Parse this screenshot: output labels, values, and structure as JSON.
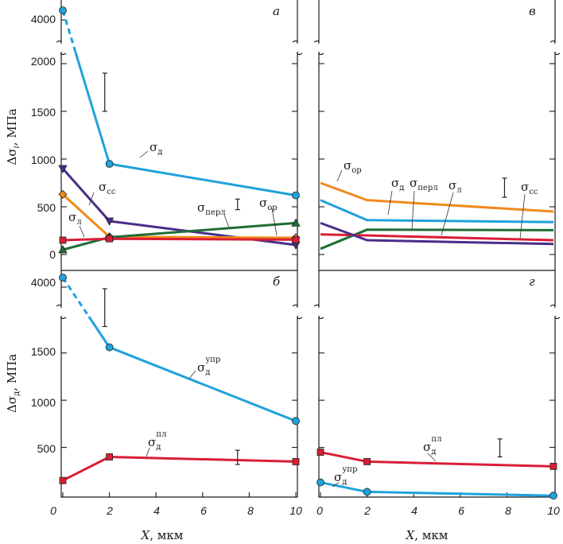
{
  "chart_data": [
    {
      "panel": "а",
      "type": "line",
      "ylabel": "Δσ_i, МПа",
      "y_break": true,
      "ylim": [
        0,
        2000
      ],
      "y_break_value": 4000,
      "yticks": [
        "0",
        "500",
        "1000",
        "1500",
        "2000",
        "4000"
      ],
      "x": [
        0,
        2,
        10
      ],
      "series": [
        {
          "name": "σ_д",
          "color": "#1fa2dc",
          "marker": "circle",
          "values": [
            4080,
            950,
            620
          ],
          "dashed_first_segment": true
        },
        {
          "name": "σ_сс",
          "color": "#4a2d8a",
          "marker": "triangle-down",
          "values": [
            900,
            350,
            100
          ]
        },
        {
          "name": "σ_ор",
          "color": "#f08a1c",
          "marker": "diamond",
          "values": [
            630,
            185,
            175
          ]
        },
        {
          "name": "σ_перл",
          "color": "#1e6e36",
          "marker": "triangle-up",
          "values": [
            50,
            180,
            330
          ]
        },
        {
          "name": "σ_л",
          "color": "#d91e36",
          "marker": "square",
          "values": [
            150,
            165,
            155
          ]
        }
      ],
      "error_bars": [
        {
          "x": 1.8,
          "low": 1500,
          "high": 1900
        },
        {
          "x": 7.5,
          "low": 470,
          "high": 580
        }
      ]
    },
    {
      "panel": "в",
      "type": "line",
      "y_break": true,
      "ylim": [
        0,
        2000
      ],
      "x": [
        0,
        2,
        10
      ],
      "series": [
        {
          "name": "σ_ор",
          "color": "#f08a1c",
          "marker": "none",
          "values": [
            750,
            570,
            450
          ]
        },
        {
          "name": "σ_д",
          "color": "#1fa2dc",
          "marker": "none",
          "values": [
            570,
            360,
            340
          ]
        },
        {
          "name": "σ_перл",
          "color": "#1e6e36",
          "marker": "none",
          "values": [
            60,
            260,
            255
          ]
        },
        {
          "name": "σ_л",
          "color": "#d91e36",
          "marker": "none",
          "values": [
            210,
            200,
            150
          ]
        },
        {
          "name": "σ_сс",
          "color": "#4a2d8a",
          "marker": "none",
          "values": [
            330,
            150,
            110
          ]
        }
      ],
      "error_bars": [
        {
          "x": 7.9,
          "low": 600,
          "high": 800
        }
      ]
    },
    {
      "panel": "б",
      "type": "line",
      "ylabel": "Δσ_д, МПа",
      "xlabel": "X, мкм",
      "y_break": true,
      "ylim": [
        0,
        2000
      ],
      "y_break_value": 4000,
      "yticks": [
        "500",
        "1000",
        "1500",
        "4000"
      ],
      "xticks": [
        "0",
        "2",
        "4",
        "6",
        "8",
        "10"
      ],
      "x": [
        0,
        2,
        10
      ],
      "series": [
        {
          "name": "σ_д^упр",
          "color": "#1fa2dc",
          "marker": "circle",
          "values": [
            4050,
            1560,
            780
          ],
          "dashed_first_segment": true
        },
        {
          "name": "σ_д^пл",
          "color": "#d91e36",
          "marker": "square",
          "values": [
            150,
            400,
            350
          ]
        }
      ],
      "error_bars": [
        {
          "x": 1.8,
          "low": 1780,
          "high": 2180
        },
        {
          "x": 7.5,
          "low": 320,
          "high": 470
        }
      ]
    },
    {
      "panel": "г",
      "type": "line",
      "xlabel": "X, мкм",
      "y_break": true,
      "ylim": [
        0,
        2000
      ],
      "xticks": [
        "0",
        "2",
        "4",
        "6",
        "8",
        "10"
      ],
      "x": [
        0,
        2,
        10
      ],
      "series": [
        {
          "name": "σ_д^пл",
          "color": "#d91e36",
          "marker": "square",
          "values": [
            450,
            350,
            300
          ]
        },
        {
          "name": "σ_д^упр",
          "color": "#1fa2dc",
          "marker": "circle",
          "values": [
            130,
            30,
            -10
          ]
        }
      ],
      "error_bars": [
        {
          "x": 7.7,
          "low": 400,
          "high": 590
        }
      ]
    }
  ],
  "labels": {
    "panel_a": "а",
    "panel_v": "в",
    "panel_b": "б",
    "panel_g": "г",
    "ylabel_top_main": "Δσ",
    "ylabel_top_sub": "i",
    "ylabel_top_unit": ", МПа",
    "ylabel_bottom_main": "Δσ",
    "ylabel_bottom_sub": "д",
    "ylabel_bottom_unit": ", МПа",
    "xlabel_left_var": "X",
    "xlabel_left_unit": ", мкм",
    "xlabel_right_var": "X",
    "xlabel_right_unit": ", мкм",
    "sigma": "σ",
    "sub_d": "д",
    "sub_ss": "сс",
    "sub_l": "л",
    "sub_perl": "перл",
    "sub_or": "ор",
    "sup_upr": "упр",
    "sup_pl": "пл"
  },
  "ticks": {
    "top_y": [
      "0",
      "500",
      "1000",
      "1500",
      "2000"
    ],
    "top_y_break": "4000",
    "bottom_y": [
      "500",
      "1000",
      "1500"
    ],
    "bottom_y_break": "4000",
    "x": [
      "0",
      "2",
      "4",
      "6",
      "8",
      "10"
    ]
  },
  "colors": {
    "blue": "#1fa2dc",
    "purple": "#4a2d8a",
    "orange": "#f08a1c",
    "green": "#1e6e36",
    "red": "#d91e36",
    "axis": "#1a1a1a"
  }
}
